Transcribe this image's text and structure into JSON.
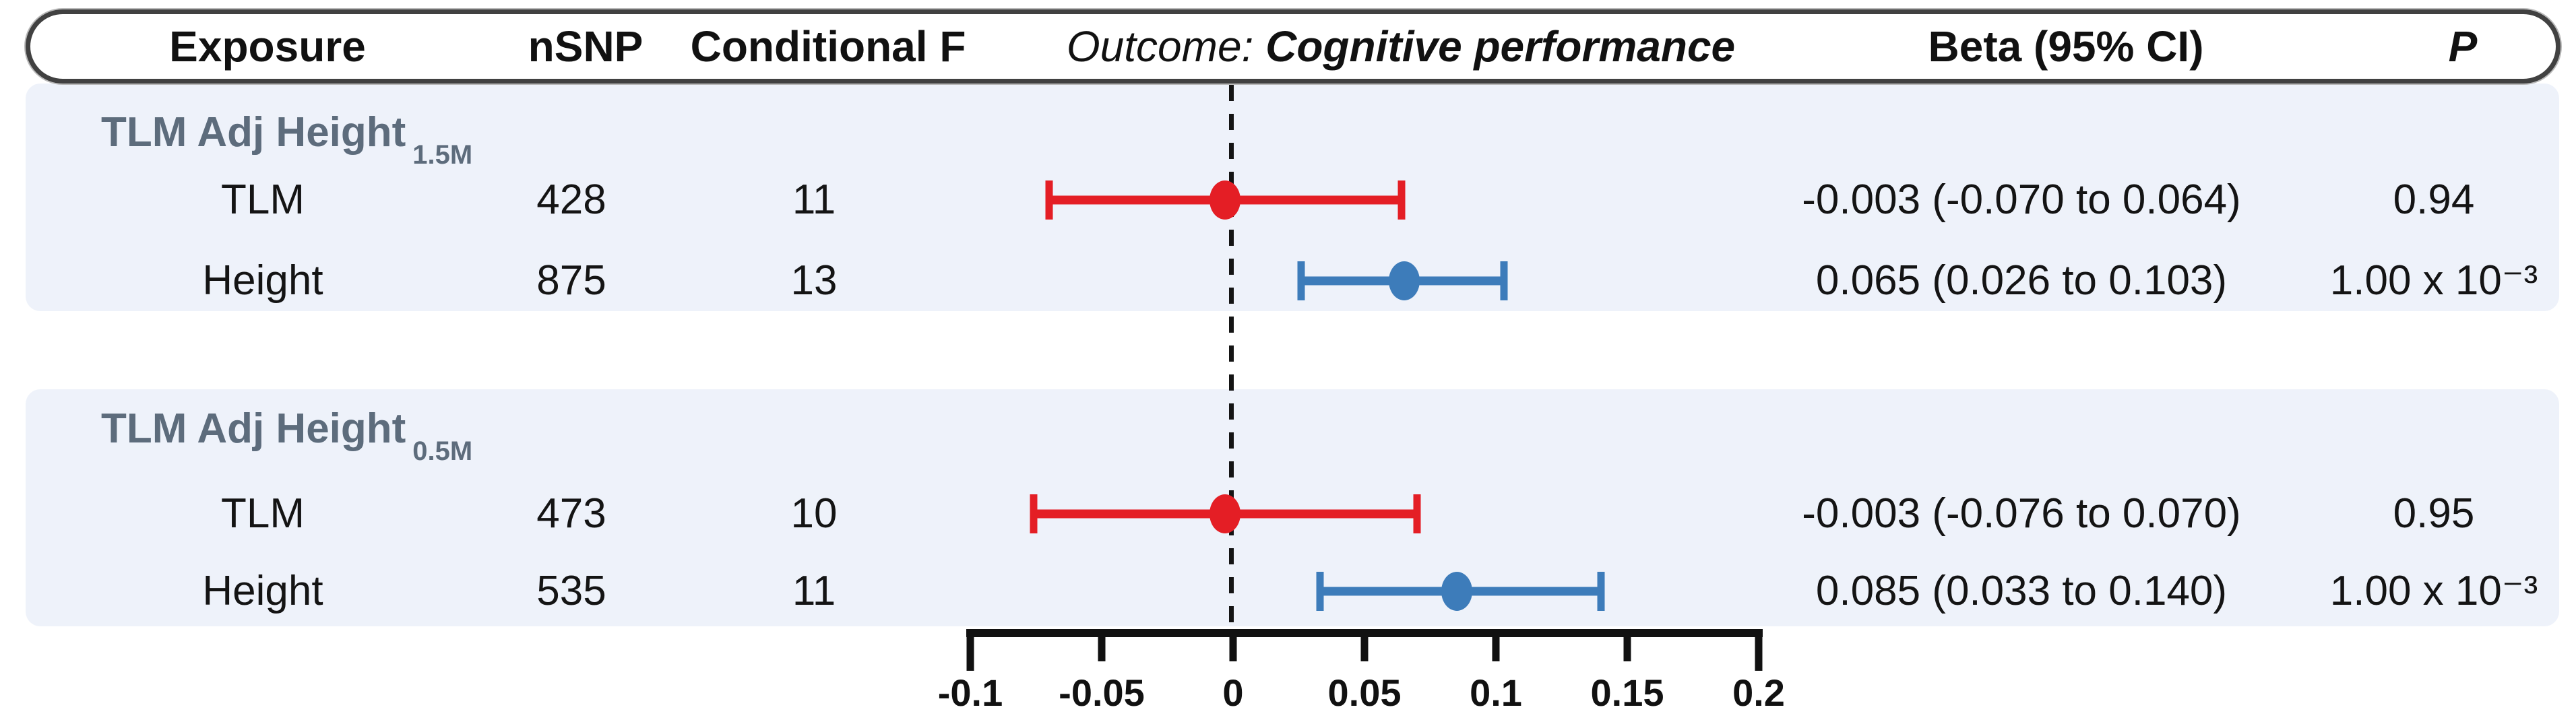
{
  "header": {
    "exposure": "Exposure",
    "nsnp": "nSNP",
    "conditional_f": "Conditional F",
    "outcome_prefix": "Outcome:",
    "outcome_name": "Cognitive performance",
    "beta_ci": "Beta (95% CI)",
    "p": "P"
  },
  "colors": {
    "red": "#e41e25",
    "blue": "#3d7cba",
    "panel_bg": "#eef2fa",
    "group_title": "#5d6c7c",
    "axis": "#111111",
    "capsule_border": "#414141"
  },
  "groups": [
    {
      "title": "TLM Adj Height",
      "title_subscript": "1.5M",
      "rows": [
        {
          "exposure": "TLM",
          "nsnp": "428",
          "conditional_f": "11",
          "beta_ci": "-0.003 (-0.070 to 0.064)",
          "p": "0.94"
        },
        {
          "exposure": "Height",
          "nsnp": "875",
          "conditional_f": "13",
          "beta_ci": "0.065 (0.026 to 0.103)",
          "p": "1.00 x 10⁻³"
        }
      ]
    },
    {
      "title": "TLM Adj Height",
      "title_subscript": "0.5M",
      "rows": [
        {
          "exposure": "TLM",
          "nsnp": "473",
          "conditional_f": "10",
          "beta_ci": "-0.003 (-0.076 to 0.070)",
          "p": "0.95"
        },
        {
          "exposure": "Height",
          "nsnp": "535",
          "conditional_f": "11",
          "beta_ci": "0.085 (0.033 to 0.140)",
          "p": "1.00 x 10⁻³"
        }
      ]
    }
  ],
  "chart_data": {
    "type": "forest",
    "outcome": "Cognitive performance",
    "x_axis": {
      "range": [
        -0.1,
        0.2
      ],
      "ticks": [
        -0.1,
        -0.05,
        0,
        0.05,
        0.1,
        0.15,
        0.2
      ],
      "tick_labels": [
        "-0.1",
        "-0.05",
        "0",
        "0.05",
        "0.1",
        "0.15",
        "0.2"
      ],
      "reference_line": 0
    },
    "series": [
      {
        "group": "TLM Adj Height 1.5M",
        "exposure": "TLM",
        "beta": -0.003,
        "ci_low": -0.07,
        "ci_high": 0.064,
        "color": "#e41e25"
      },
      {
        "group": "TLM Adj Height 1.5M",
        "exposure": "Height",
        "beta": 0.065,
        "ci_low": 0.026,
        "ci_high": 0.103,
        "color": "#3d7cba"
      },
      {
        "group": "TLM Adj Height 0.5M",
        "exposure": "TLM",
        "beta": -0.003,
        "ci_low": -0.076,
        "ci_high": 0.07,
        "color": "#e41e25"
      },
      {
        "group": "TLM Adj Height 0.5M",
        "exposure": "Height",
        "beta": 0.085,
        "ci_low": 0.033,
        "ci_high": 0.14,
        "color": "#3d7cba"
      }
    ]
  }
}
